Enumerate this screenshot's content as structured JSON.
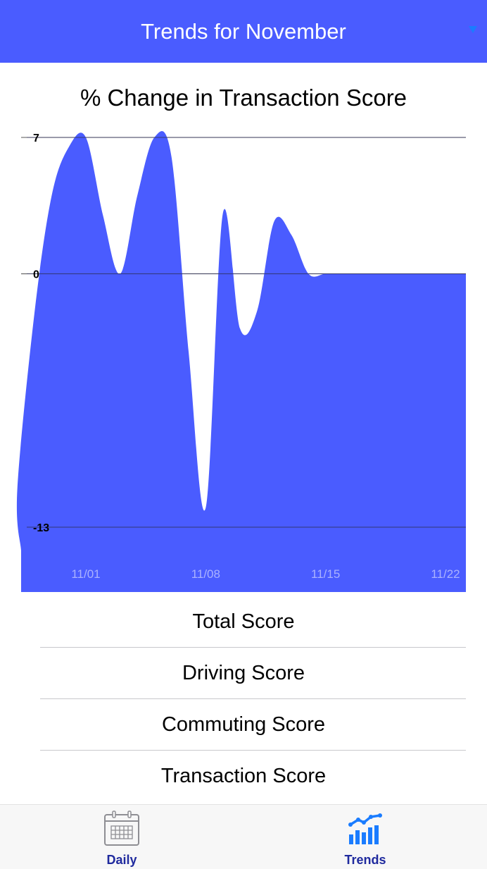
{
  "header": {
    "title": "Trends for November"
  },
  "chart_data": {
    "type": "area",
    "title": "% Change in Transaction Score",
    "xlabel": "",
    "ylabel": "",
    "y_ticks": [
      7,
      0,
      -13
    ],
    "ylim": [
      -13,
      7
    ],
    "x_tick_labels": [
      "11/01",
      "11/08",
      "11/15",
      "11/22"
    ],
    "grid": true,
    "series": [
      {
        "color": "#4a5cff",
        "points": [
          {
            "x": "10/27",
            "y": -14.2
          },
          {
            "x": "10/28",
            "y": -11
          },
          {
            "x": "10/29",
            "y": -2
          },
          {
            "x": "10/30",
            "y": 4
          },
          {
            "x": "10/31",
            "y": 6.5
          },
          {
            "x": "11/01",
            "y": 7
          },
          {
            "x": "11/02",
            "y": 3
          },
          {
            "x": "11/03",
            "y": 0
          },
          {
            "x": "11/04",
            "y": 4
          },
          {
            "x": "11/05",
            "y": 7
          },
          {
            "x": "11/06",
            "y": 6
          },
          {
            "x": "11/07",
            "y": -4
          },
          {
            "x": "11/08",
            "y": -12
          },
          {
            "x": "11/09",
            "y": 3.1
          },
          {
            "x": "11/10",
            "y": -2.8
          },
          {
            "x": "11/11",
            "y": -1.9
          },
          {
            "x": "11/12",
            "y": 2.7
          },
          {
            "x": "11/13",
            "y": 2
          },
          {
            "x": "11/14",
            "y": 0
          },
          {
            "x": "11/15",
            "y": 0
          },
          {
            "x": "11/16",
            "y": 0
          },
          {
            "x": "11/17",
            "y": 0
          },
          {
            "x": "11/18",
            "y": 0
          },
          {
            "x": "11/19",
            "y": 0
          },
          {
            "x": "11/20",
            "y": 0
          },
          {
            "x": "11/21",
            "y": 0
          },
          {
            "x": "11/22",
            "y": 0
          }
        ]
      }
    ]
  },
  "score_list": {
    "items": [
      "Total Score",
      "Driving Score",
      "Commuting Score",
      "Transaction Score"
    ]
  },
  "tabbar": {
    "tabs": [
      {
        "label": "Daily",
        "icon": "calendar-icon"
      },
      {
        "label": "Trends",
        "icon": "trends-chart-icon"
      }
    ]
  },
  "colors": {
    "accent": "#4a5cff",
    "header_caret": "#1a7cff",
    "tab_label": "#1f2a9e",
    "tab_icon_inactive": "#8e8e93",
    "tab_icon_active": "#1a7cff",
    "x_tick_label": "#aab2ff"
  }
}
